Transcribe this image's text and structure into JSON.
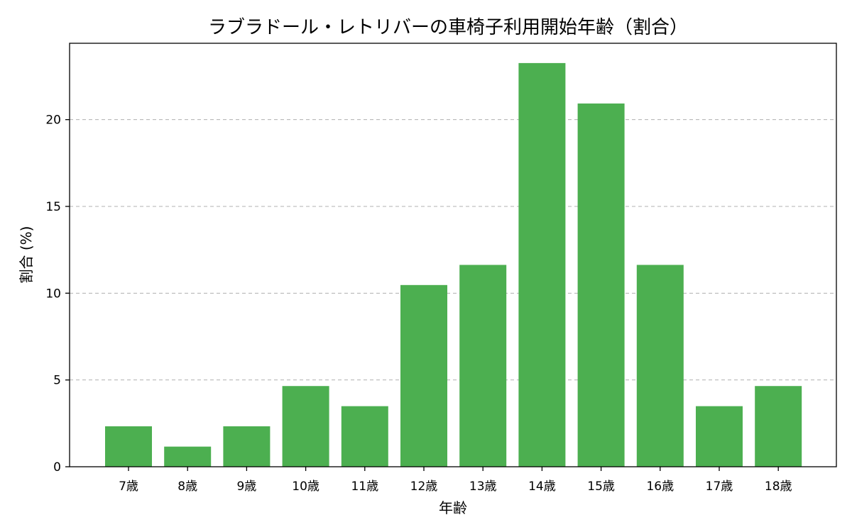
{
  "chart_data": {
    "type": "bar",
    "title": "ラブラドール・レトリバーの車椅子利用開始年齢（割合）",
    "xlabel": "年齢",
    "ylabel": "割合 (%)",
    "categories": [
      "7歳",
      "8歳",
      "9歳",
      "10歳",
      "11歳",
      "12歳",
      "13歳",
      "14歳",
      "15歳",
      "16歳",
      "17歳",
      "18歳"
    ],
    "values": [
      2.33,
      1.16,
      2.33,
      4.65,
      3.49,
      10.47,
      11.63,
      23.26,
      20.93,
      11.63,
      3.49,
      4.65
    ],
    "ylim": [
      0,
      24.4
    ],
    "yticks": [
      0,
      5,
      10,
      15,
      20
    ],
    "grid": "y-dashed",
    "bar_color": "#4caf50"
  }
}
